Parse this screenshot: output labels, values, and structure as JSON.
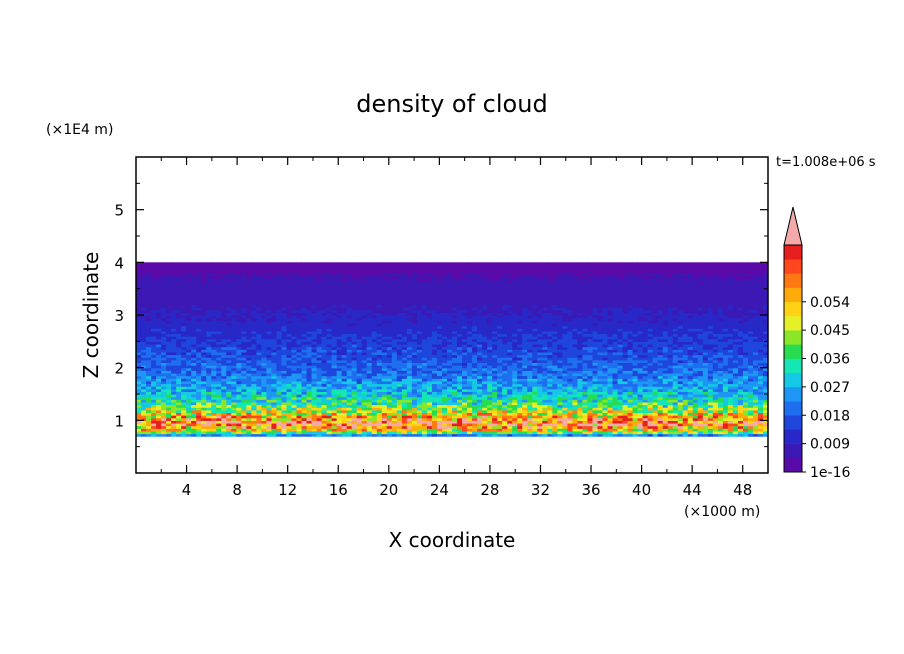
{
  "chart_data": {
    "type": "heatmap",
    "title": "density of cloud",
    "xlabel": "X coordinate",
    "ylabel": "Z coordinate",
    "x_unit": "(×1000 m)",
    "y_unit": "(×1E4 m)",
    "time_label": "t=1.008e+06 s",
    "xlim": [
      0,
      50
    ],
    "ylim": [
      0,
      6
    ],
    "x_ticks": [
      "4",
      "8",
      "12",
      "16",
      "20",
      "24",
      "28",
      "32",
      "36",
      "40",
      "44",
      "48"
    ],
    "y_ticks": [
      "1",
      "2",
      "3",
      "4",
      "5"
    ],
    "legend_position": "right",
    "colorbar": {
      "labels": [
        "1e-16",
        "0.009",
        "0.018",
        "0.027",
        "0.036",
        "0.045",
        "0.054"
      ],
      "colors": [
        "#5a0aa8",
        "#3c18b4",
        "#2828c8",
        "#1e46dc",
        "#1e6ef0",
        "#1e96f5",
        "#14c8e6",
        "#14e6b4",
        "#28dc50",
        "#8ce628",
        "#e6f028",
        "#ffd214",
        "#ffaa0a",
        "#ff7814",
        "#ff461e",
        "#e61e1e",
        "#f5aaaa"
      ]
    },
    "cloud_profile": [
      {
        "z": 0.7,
        "value": 0.009
      },
      {
        "z": 0.8,
        "value": 0.036
      },
      {
        "z": 0.95,
        "value": 0.054
      },
      {
        "z": 1.1,
        "value": 0.04
      },
      {
        "z": 1.3,
        "value": 0.027
      },
      {
        "z": 1.6,
        "value": 0.018
      },
      {
        "z": 2.0,
        "value": 0.012
      },
      {
        "z": 2.5,
        "value": 0.008
      },
      {
        "z": 3.0,
        "value": 0.004
      },
      {
        "z": 3.5,
        "value": 0.001
      },
      {
        "z": 4.0,
        "value": 1e-16
      }
    ],
    "cloud_base_z": 0.7,
    "cloud_top_z": 4.0
  }
}
